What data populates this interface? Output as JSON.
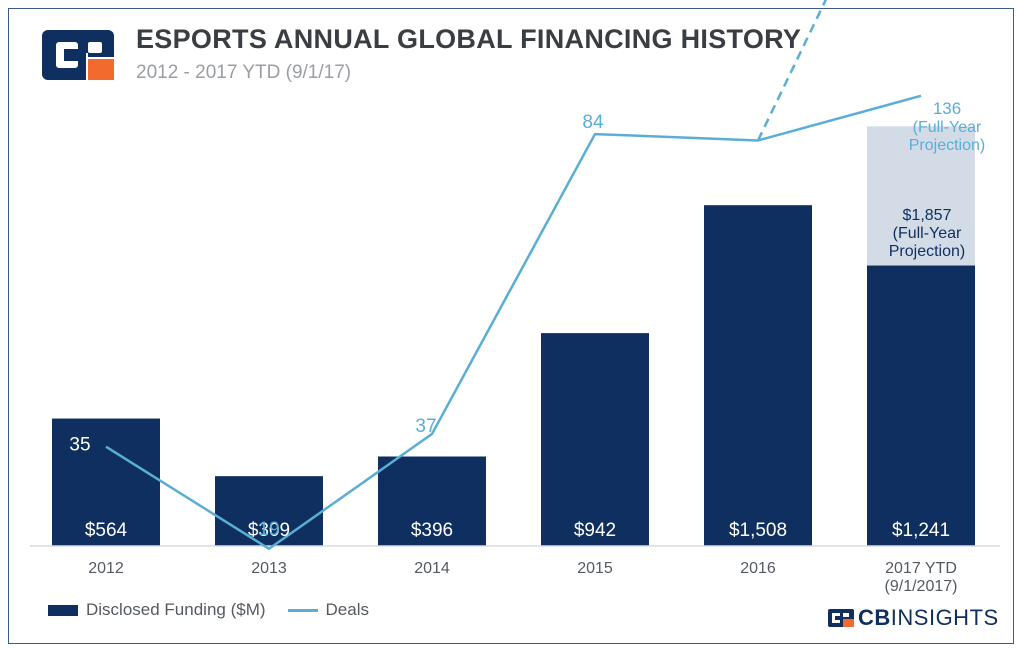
{
  "header": {
    "title": "ESPORTS ANNUAL GLOBAL FINANCING HISTORY",
    "subtitle": "2012 - 2017 YTD (9/1/17)"
  },
  "legend": {
    "bar_label": "Disclosed Funding ($M)",
    "line_label": "Deals"
  },
  "brand": {
    "strong": "CB",
    "light": "INSIGHTS"
  },
  "colors": {
    "bar": "#0e2f5f",
    "projection": "#d3dce6",
    "line": "#5aaed6",
    "axis_text": "#555a60",
    "logo_navy": "#0e2f5f",
    "logo_orange": "#f26a2e"
  },
  "chart_data": {
    "type": "bar",
    "categories": [
      "2012",
      "2013",
      "2014",
      "2015",
      "2016",
      "2017 YTD"
    ],
    "category_sublabels": [
      "",
      "",
      "",
      "",
      "",
      "(9/1/2017)"
    ],
    "series": [
      {
        "name": "Disclosed Funding ($M)",
        "type": "bar",
        "values": [
          564,
          309,
          396,
          942,
          1508,
          1241
        ],
        "labels": [
          "$564",
          "$309",
          "$396",
          "$942",
          "$1,508",
          "$1,241"
        ]
      },
      {
        "name": "Deals",
        "type": "line",
        "values": [
          35,
          19,
          37,
          84,
          83,
          90
        ],
        "labels": [
          "35",
          "19",
          "37",
          "84",
          "83",
          "90"
        ]
      }
    ],
    "projection": {
      "funding_value": 1857,
      "funding_label": [
        "$1,857",
        "(Full-Year",
        "Projection)"
      ],
      "deals_value": 136,
      "deals_label": [
        "136",
        "(Full-Year",
        "Projection)"
      ]
    },
    "ylim_funding": [
      0,
      2000
    ],
    "ylim_deals": [
      0,
      140
    ],
    "legend_position": "bottom-left",
    "grid": false
  }
}
